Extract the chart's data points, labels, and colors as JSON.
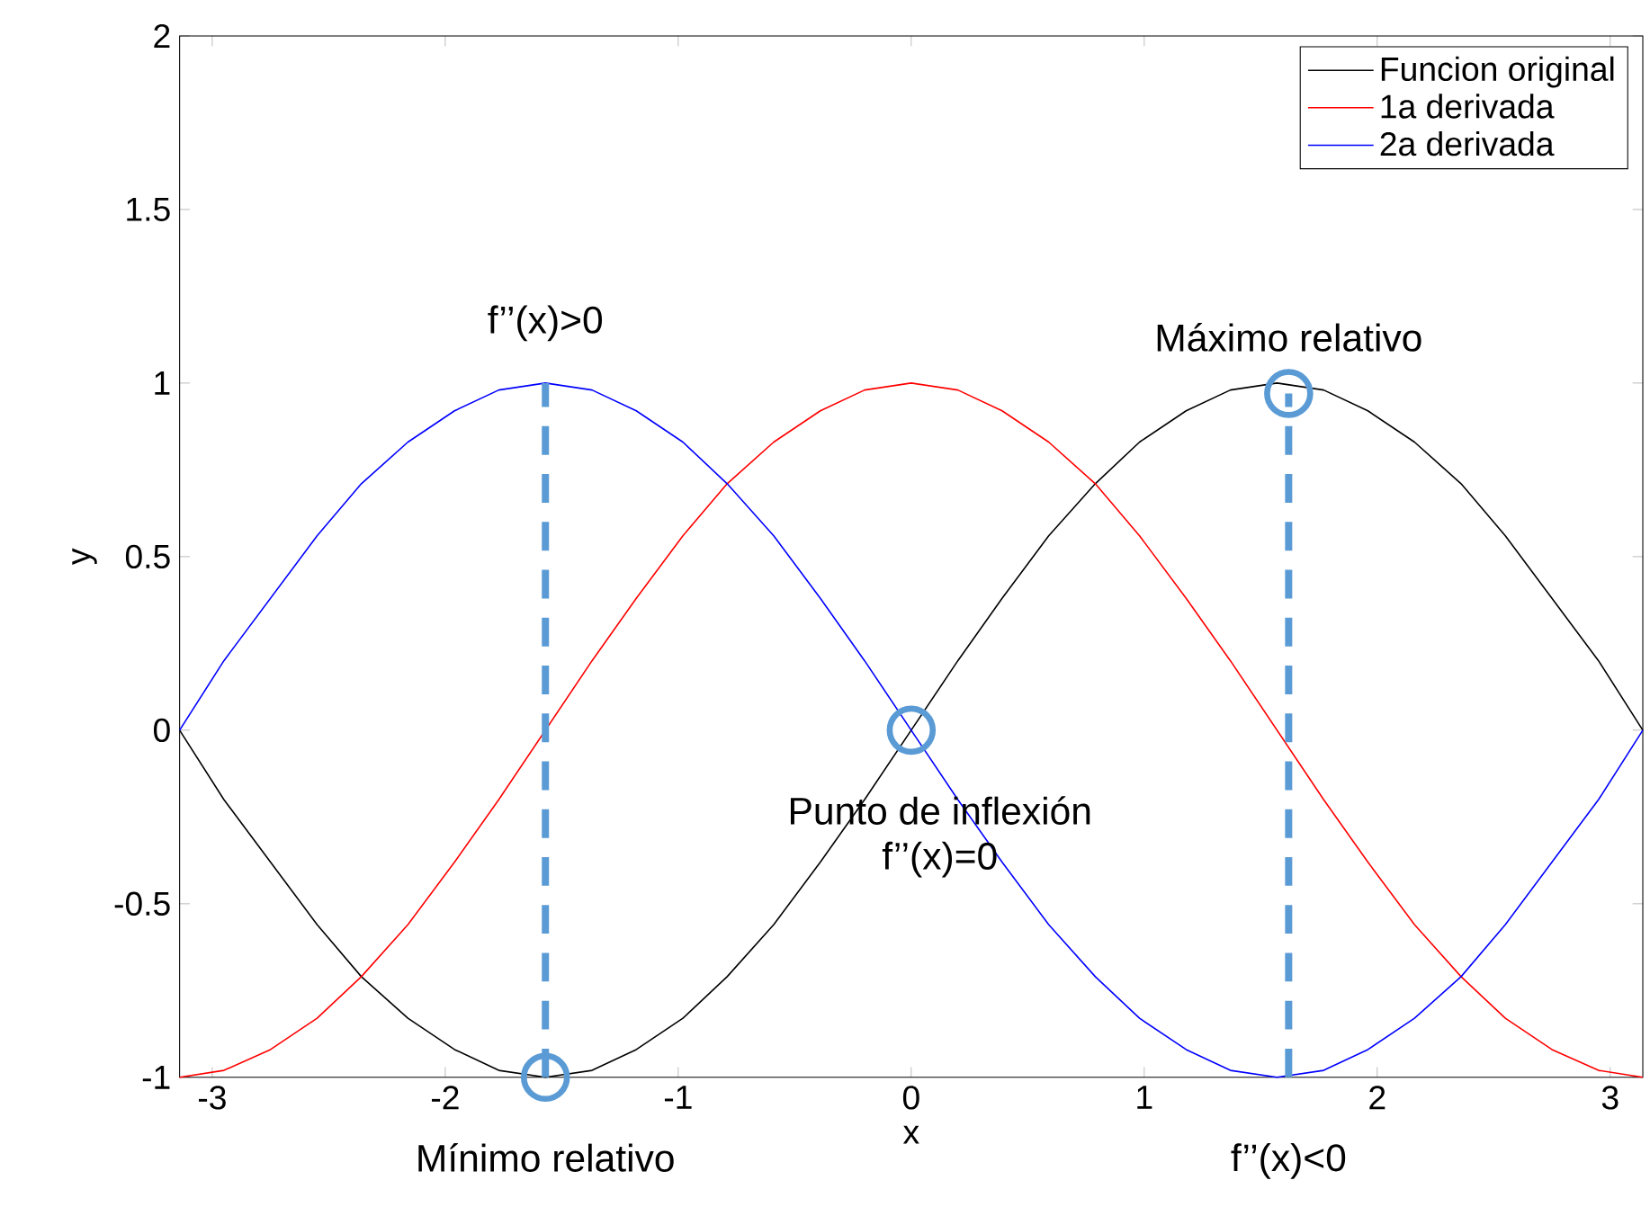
{
  "chart_data": {
    "type": "line",
    "xlabel": "x",
    "ylabel": "y",
    "x": [
      -3.14,
      -2.95,
      -2.75,
      -2.55,
      -2.36,
      -2.16,
      -1.96,
      -1.77,
      -1.57,
      -1.37,
      -1.18,
      -0.98,
      -0.79,
      -0.59,
      -0.39,
      -0.2,
      0,
      0.2,
      0.39,
      0.59,
      0.79,
      0.98,
      1.18,
      1.37,
      1.57,
      1.77,
      1.96,
      2.16,
      2.36,
      2.55,
      2.75,
      2.95,
      3.14
    ],
    "series": [
      {
        "name": "Funcion original",
        "color": "#000000",
        "values": [
          0,
          -0.2,
          -0.38,
          -0.56,
          -0.71,
          -0.83,
          -0.92,
          -0.98,
          -1,
          -0.98,
          -0.92,
          -0.83,
          -0.71,
          -0.56,
          -0.38,
          -0.2,
          0,
          0.2,
          0.38,
          0.56,
          0.71,
          0.83,
          0.92,
          0.98,
          1,
          0.98,
          0.92,
          0.83,
          0.71,
          0.56,
          0.38,
          0.2,
          0
        ]
      },
      {
        "name": "1a derivada",
        "color": "#ff0000",
        "values": [
          -1,
          -0.98,
          -0.92,
          -0.83,
          -0.71,
          -0.56,
          -0.38,
          -0.2,
          0,
          0.2,
          0.38,
          0.56,
          0.71,
          0.83,
          0.92,
          0.98,
          1,
          0.98,
          0.92,
          0.83,
          0.71,
          0.56,
          0.38,
          0.2,
          0,
          -0.2,
          -0.38,
          -0.56,
          -0.71,
          -0.83,
          -0.92,
          -0.98,
          -1
        ]
      },
      {
        "name": "2a derivada",
        "color": "#0000ff",
        "values": [
          0,
          0.2,
          0.38,
          0.56,
          0.71,
          0.83,
          0.92,
          0.98,
          1,
          0.98,
          0.92,
          0.83,
          0.71,
          0.56,
          0.38,
          0.2,
          0,
          -0.2,
          -0.38,
          -0.56,
          -0.71,
          -0.83,
          -0.92,
          -0.98,
          -1,
          -0.98,
          -0.92,
          -0.83,
          -0.71,
          -0.56,
          -0.38,
          -0.2,
          0
        ]
      },
      {
        "type": "line",
        "line_style": "dashed",
        "color": "#5b9bd5",
        "x": [
          -1.57,
          -1.57
        ],
        "values": [
          -1,
          1
        ]
      },
      {
        "type": "line",
        "line_style": "dashed",
        "color": "#5b9bd5",
        "x": [
          1.62,
          1.62
        ],
        "values": [
          -1,
          0.97
        ]
      },
      {
        "type": "scatter",
        "marker": "circle",
        "color": "#5b9bd5",
        "x": [
          -1.57,
          0,
          1.62
        ],
        "values": [
          -1,
          0,
          0.97
        ]
      }
    ],
    "xlim": [
      -3.14,
      3.14
    ],
    "ylim": [
      -1,
      2
    ],
    "xticks": [
      -3,
      -2,
      -1,
      0,
      1,
      2,
      3
    ],
    "yticks": [
      -1,
      -0.5,
      0,
      0.5,
      1,
      1.5,
      2
    ],
    "legend": "top right",
    "annotations": [
      {
        "text": "f’’(x)>0",
        "x": -1.57,
        "y": 1
      },
      {
        "text": "Máximo relativo",
        "x": 1.62,
        "y": 0.97
      },
      {
        "text": "Punto de inflexión",
        "x": 0,
        "y": 0
      },
      "f’’(x)=0",
      {
        "text": "Mínimo relativo",
        "x": -1.57,
        "y": -1
      },
      {
        "text": "f’’(x)<0",
        "x": 1.62,
        "y": -1
      }
    ]
  }
}
